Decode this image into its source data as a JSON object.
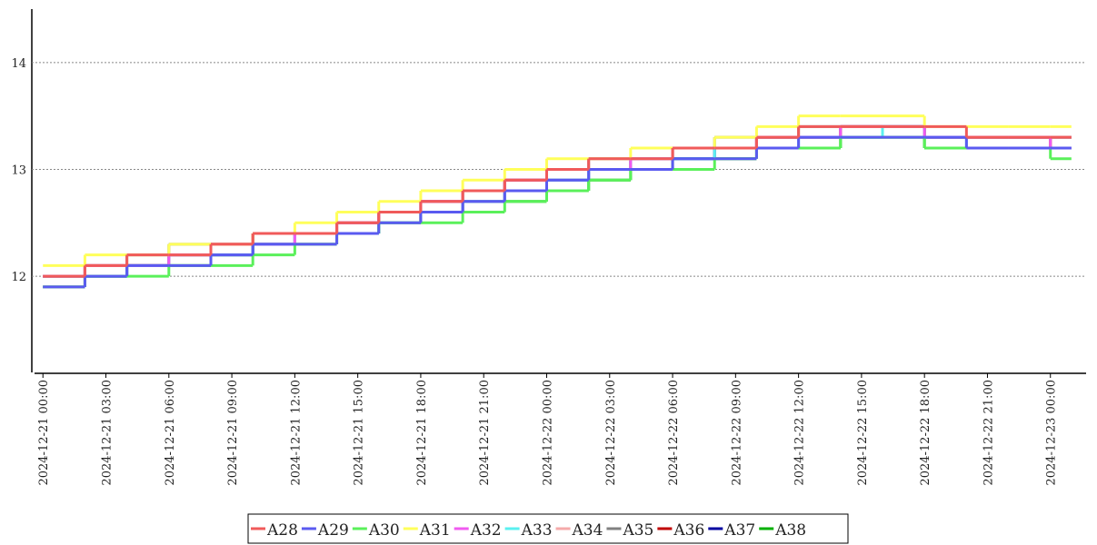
{
  "chart_data": {
    "type": "step",
    "x": [
      "2024-12-21 00:00",
      "2024-12-21 02:00",
      "2024-12-21 04:00",
      "2024-12-21 06:00",
      "2024-12-21 08:00",
      "2024-12-21 10:00",
      "2024-12-21 12:00",
      "2024-12-21 14:00",
      "2024-12-21 16:00",
      "2024-12-21 18:00",
      "2024-12-21 20:00",
      "2024-12-21 22:00",
      "2024-12-22 00:00",
      "2024-12-22 02:00",
      "2024-12-22 04:00",
      "2024-12-22 06:00",
      "2024-12-22 08:00",
      "2024-12-22 10:00",
      "2024-12-22 12:00",
      "2024-12-22 14:00",
      "2024-12-22 16:00",
      "2024-12-22 18:00",
      "2024-12-22 20:00",
      "2024-12-22 22:00",
      "2024-12-23 00:00"
    ],
    "xlim": [
      "2024-12-20 23:36",
      "2024-12-23 01:42"
    ],
    "xticks": [
      "2024-12-21 00:00",
      "2024-12-21 03:00",
      "2024-12-21 06:00",
      "2024-12-21 09:00",
      "2024-12-21 12:00",
      "2024-12-21 15:00",
      "2024-12-21 18:00",
      "2024-12-21 21:00",
      "2024-12-22 00:00",
      "2024-12-22 03:00",
      "2024-12-22 06:00",
      "2024-12-22 09:00",
      "2024-12-22 12:00",
      "2024-12-22 15:00",
      "2024-12-22 18:00",
      "2024-12-22 21:00",
      "2024-12-23 00:00"
    ],
    "ylim": [
      11.1,
      14.5
    ],
    "yticks": [
      12,
      13,
      14
    ],
    "grid": true,
    "series": [
      {
        "name": "A28",
        "color": "#f05a5a",
        "values": [
          12.0,
          12.1,
          12.2,
          12.2,
          12.3,
          12.4,
          12.4,
          12.5,
          12.6,
          12.7,
          12.8,
          12.9,
          13.0,
          13.1,
          13.1,
          13.2,
          13.2,
          13.3,
          13.4,
          13.4,
          13.4,
          13.4,
          13.3,
          13.3,
          13.3
        ]
      },
      {
        "name": "A29",
        "color": "#5a5af0",
        "values": [
          11.9,
          12.0,
          12.1,
          12.1,
          12.2,
          12.3,
          12.3,
          12.4,
          12.5,
          12.6,
          12.7,
          12.8,
          12.9,
          13.0,
          13.0,
          13.1,
          13.1,
          13.2,
          13.3,
          13.3,
          13.3,
          13.3,
          13.2,
          13.2,
          13.2
        ]
      },
      {
        "name": "A30",
        "color": "#5af05a",
        "values": [
          11.9,
          12.0,
          12.0,
          12.1,
          12.1,
          12.2,
          12.3,
          12.4,
          12.5,
          12.5,
          12.6,
          12.7,
          12.8,
          12.9,
          13.0,
          13.0,
          13.1,
          13.2,
          13.2,
          13.3,
          13.3,
          13.2,
          13.2,
          13.2,
          13.1
        ]
      },
      {
        "name": "A31",
        "color": "#ffff5a",
        "values": [
          12.1,
          12.2,
          12.2,
          12.3,
          12.3,
          12.4,
          12.5,
          12.6,
          12.7,
          12.8,
          12.9,
          13.0,
          13.1,
          13.1,
          13.2,
          13.2,
          13.3,
          13.4,
          13.5,
          13.5,
          13.5,
          13.4,
          13.4,
          13.4,
          13.4
        ]
      },
      {
        "name": "A32",
        "color": "#f05af0",
        "values": [
          12.0,
          12.1,
          12.1,
          12.2,
          12.3,
          12.3,
          12.4,
          12.5,
          12.6,
          12.7,
          12.8,
          12.9,
          13.0,
          13.0,
          13.1,
          13.2,
          13.2,
          13.3,
          13.3,
          13.4,
          13.4,
          13.3,
          13.3,
          13.3,
          13.2
        ]
      },
      {
        "name": "A33",
        "color": "#5af0f0",
        "values": [
          12.0,
          12.0,
          12.1,
          12.2,
          12.2,
          12.3,
          12.4,
          12.4,
          12.5,
          12.6,
          12.7,
          12.8,
          12.9,
          13.0,
          13.1,
          13.1,
          13.2,
          13.2,
          13.3,
          13.3,
          13.4,
          13.3,
          13.2,
          13.2,
          13.2
        ]
      },
      {
        "name": "A34",
        "color": "#f5aaaa",
        "values": [
          12.0,
          12.1,
          12.1,
          12.2,
          12.3,
          12.3,
          12.4,
          12.5,
          12.5,
          12.6,
          12.7,
          12.8,
          12.9,
          13.0,
          13.1,
          13.2,
          13.2,
          13.3,
          13.3,
          13.4,
          13.4,
          13.3,
          13.3,
          13.3,
          13.3
        ]
      },
      {
        "name": "A35",
        "color": "#808080",
        "values": [
          12.0,
          12.1,
          12.2,
          12.3,
          12.3,
          12.4,
          12.4,
          12.5,
          12.6,
          12.7,
          12.8,
          12.9,
          13.0,
          13.1,
          13.1,
          13.2,
          13.3,
          13.3,
          13.4,
          13.4,
          13.4,
          13.3,
          13.3,
          13.3,
          13.3
        ]
      },
      {
        "name": "A36",
        "color": "#c00000",
        "values": [
          12.0,
          12.1,
          12.1,
          12.2,
          12.3,
          12.4,
          12.4,
          12.5,
          12.6,
          12.7,
          12.8,
          12.9,
          13.0,
          13.0,
          13.1,
          13.2,
          13.2,
          13.3,
          13.3,
          13.4,
          13.4,
          13.3,
          13.3,
          13.3,
          13.2
        ]
      },
      {
        "name": "A37",
        "color": "#0000a0",
        "values": [
          12.0,
          12.0,
          12.1,
          12.2,
          12.2,
          12.3,
          12.4,
          12.5,
          12.5,
          12.6,
          12.7,
          12.8,
          12.9,
          13.0,
          13.1,
          13.1,
          13.2,
          13.3,
          13.3,
          13.4,
          13.4,
          13.3,
          13.3,
          13.3,
          13.3
        ]
      },
      {
        "name": "A38",
        "color": "#00b000",
        "values": [
          11.9,
          12.0,
          12.1,
          12.1,
          12.2,
          12.3,
          12.3,
          12.4,
          12.5,
          12.6,
          12.7,
          12.7,
          12.8,
          12.9,
          13.0,
          13.1,
          13.1,
          13.2,
          13.2,
          13.3,
          13.3,
          13.2,
          13.2,
          13.2,
          13.2
        ]
      }
    ]
  }
}
